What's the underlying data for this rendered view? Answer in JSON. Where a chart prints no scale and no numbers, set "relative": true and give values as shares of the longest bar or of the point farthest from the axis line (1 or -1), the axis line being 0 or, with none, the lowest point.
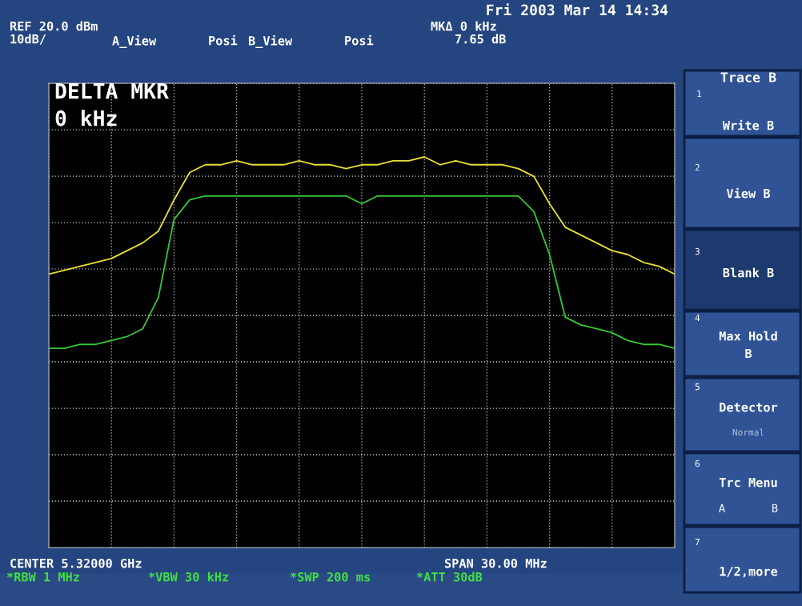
{
  "chart_data": {
    "type": "line",
    "relative": true,
    "grid": true,
    "tick_labels": false,
    "legend": false,
    "categories": [
      null,
      null,
      null,
      null,
      null,
      null,
      null,
      null,
      null,
      null,
      null,
      null,
      null,
      null,
      null,
      null,
      null,
      null,
      null,
      null,
      null,
      null,
      null,
      null,
      null,
      null,
      null,
      null,
      null,
      null,
      null,
      null,
      null,
      null,
      null,
      null,
      null,
      null,
      null,
      null,
      null
    ],
    "series": [
      {
        "color": "#e8e030",
        "values": [
          0.7,
          0.71,
          0.72,
          0.73,
          0.74,
          0.76,
          0.78,
          0.81,
          0.89,
          0.96,
          0.98,
          0.98,
          0.99,
          0.98,
          0.98,
          0.98,
          0.99,
          0.98,
          0.98,
          0.97,
          0.98,
          0.98,
          0.99,
          0.99,
          1.0,
          0.98,
          0.99,
          0.98,
          0.98,
          0.98,
          0.97,
          0.95,
          0.88,
          0.82,
          0.8,
          0.78,
          0.76,
          0.75,
          0.73,
          0.72,
          0.7
        ]
      },
      {
        "color": "#34c834",
        "values": [
          0.51,
          0.51,
          0.52,
          0.52,
          0.53,
          0.54,
          0.56,
          0.64,
          0.84,
          0.89,
          0.9,
          0.9,
          0.9,
          0.9,
          0.9,
          0.9,
          0.9,
          0.9,
          0.9,
          0.9,
          0.88,
          0.9,
          0.9,
          0.9,
          0.9,
          0.9,
          0.9,
          0.9,
          0.9,
          0.9,
          0.9,
          0.86,
          0.75,
          0.59,
          0.57,
          0.56,
          0.55,
          0.53,
          0.52,
          0.52,
          0.51
        ]
      }
    ],
    "annotations": [
      "Fri 2003 Mar 14 14:34",
      "REF 20.0 dBm",
      "10dB/",
      "A_View",
      "Posi",
      "B_View",
      "Posi",
      "MKΔ 0 kHz",
      "7.65 dB",
      "DELTA MKR",
      "0 kHz",
      "CENTER 5.32000 GHz",
      "SPAN 30.00 MHz",
      "*RBW 1 MHz",
      "*VBW 30 kHz",
      "*SWP 200 ms",
      "*ATT 30dB",
      "Trace B",
      "1",
      "Write B",
      "2",
      "View B",
      "3",
      "Blank B",
      "4",
      "Max Hold\nB",
      "5",
      "Detector",
      "Normal",
      "6",
      "Trc Menu",
      "A",
      "B",
      "7",
      "1/2,more"
    ]
  }
}
